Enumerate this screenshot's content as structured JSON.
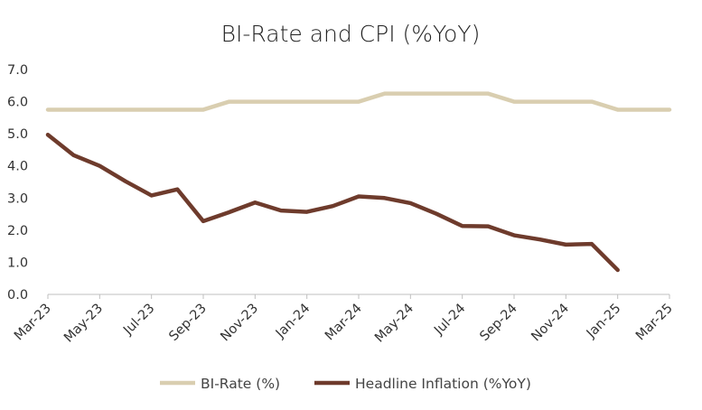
{
  "chart_data": {
    "type": "line",
    "title": "BI-Rate and CPI (%YoY)",
    "xlabel": "",
    "ylabel": "",
    "ylim": [
      0,
      7
    ],
    "yticks": [
      "0.0",
      "1.0",
      "2.0",
      "3.0",
      "4.0",
      "5.0",
      "6.0",
      "7.0"
    ],
    "categories": [
      "Mar-23",
      "Apr-23",
      "May-23",
      "Jun-23",
      "Jul-23",
      "Aug-23",
      "Sep-23",
      "Oct-23",
      "Nov-23",
      "Dec-23",
      "Jan-24",
      "Feb-24",
      "Mar-24",
      "Apr-24",
      "May-24",
      "Jun-24",
      "Jul-24",
      "Aug-24",
      "Sep-24",
      "Oct-24",
      "Nov-24",
      "Dec-24",
      "Jan-25",
      "Feb-25",
      "Mar-25"
    ],
    "tick_labels": [
      "Mar-23",
      "May-23",
      "Jul-23",
      "Sep-23",
      "Nov-23",
      "Jan-24",
      "Mar-24",
      "May-24",
      "Jul-24",
      "Sep-24",
      "Nov-24",
      "Jan-25",
      "Mar-25"
    ],
    "grid": false,
    "legend_position": "bottom",
    "series": [
      {
        "name": "BI-Rate (%)",
        "color": "#d9ceb0",
        "values": [
          5.75,
          5.75,
          5.75,
          5.75,
          5.75,
          5.75,
          5.75,
          6.0,
          6.0,
          6.0,
          6.0,
          6.0,
          6.0,
          6.25,
          6.25,
          6.25,
          6.25,
          6.25,
          6.0,
          6.0,
          6.0,
          6.0,
          5.75,
          5.75,
          5.75
        ]
      },
      {
        "name": "Headline Inflation (%YoY)",
        "color": "#6e3b2c",
        "values": [
          4.97,
          4.33,
          4.0,
          3.52,
          3.08,
          3.27,
          2.28,
          2.56,
          2.86,
          2.61,
          2.57,
          2.75,
          3.05,
          3.0,
          2.84,
          2.51,
          2.13,
          2.12,
          1.84,
          1.71,
          1.55,
          1.57,
          0.76,
          null,
          null
        ]
      }
    ]
  }
}
